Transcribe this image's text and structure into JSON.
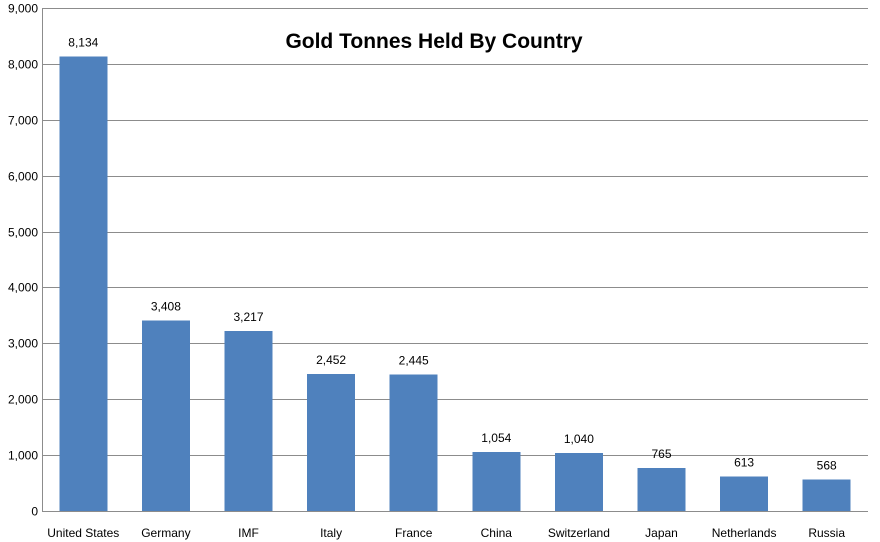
{
  "chart_data": {
    "type": "bar",
    "title": "Gold Tonnes Held By Country",
    "categories": [
      "United States",
      "Germany",
      "IMF",
      "Italy",
      "France",
      "China",
      "Switzerland",
      "Japan",
      "Netherlands",
      "Russia"
    ],
    "values": [
      8134,
      3408,
      3217,
      2452,
      2445,
      1054,
      1040,
      765,
      613,
      568
    ],
    "data_labels": [
      "8,134",
      "3,408",
      "3,217",
      "2,452",
      "2,445",
      "1,054",
      "1,040",
      "765",
      "613",
      "568"
    ],
    "ylim": [
      0,
      9000
    ],
    "yticks": [
      0,
      1000,
      2000,
      3000,
      4000,
      5000,
      6000,
      7000,
      8000,
      9000
    ],
    "ytick_labels": [
      "0",
      "1,000",
      "2,000",
      "3,000",
      "4,000",
      "5,000",
      "6,000",
      "7,000",
      "8,000",
      "9,000"
    ],
    "xlabel": "",
    "ylabel": "",
    "grid": true,
    "bar_color": "#4f81bd"
  }
}
